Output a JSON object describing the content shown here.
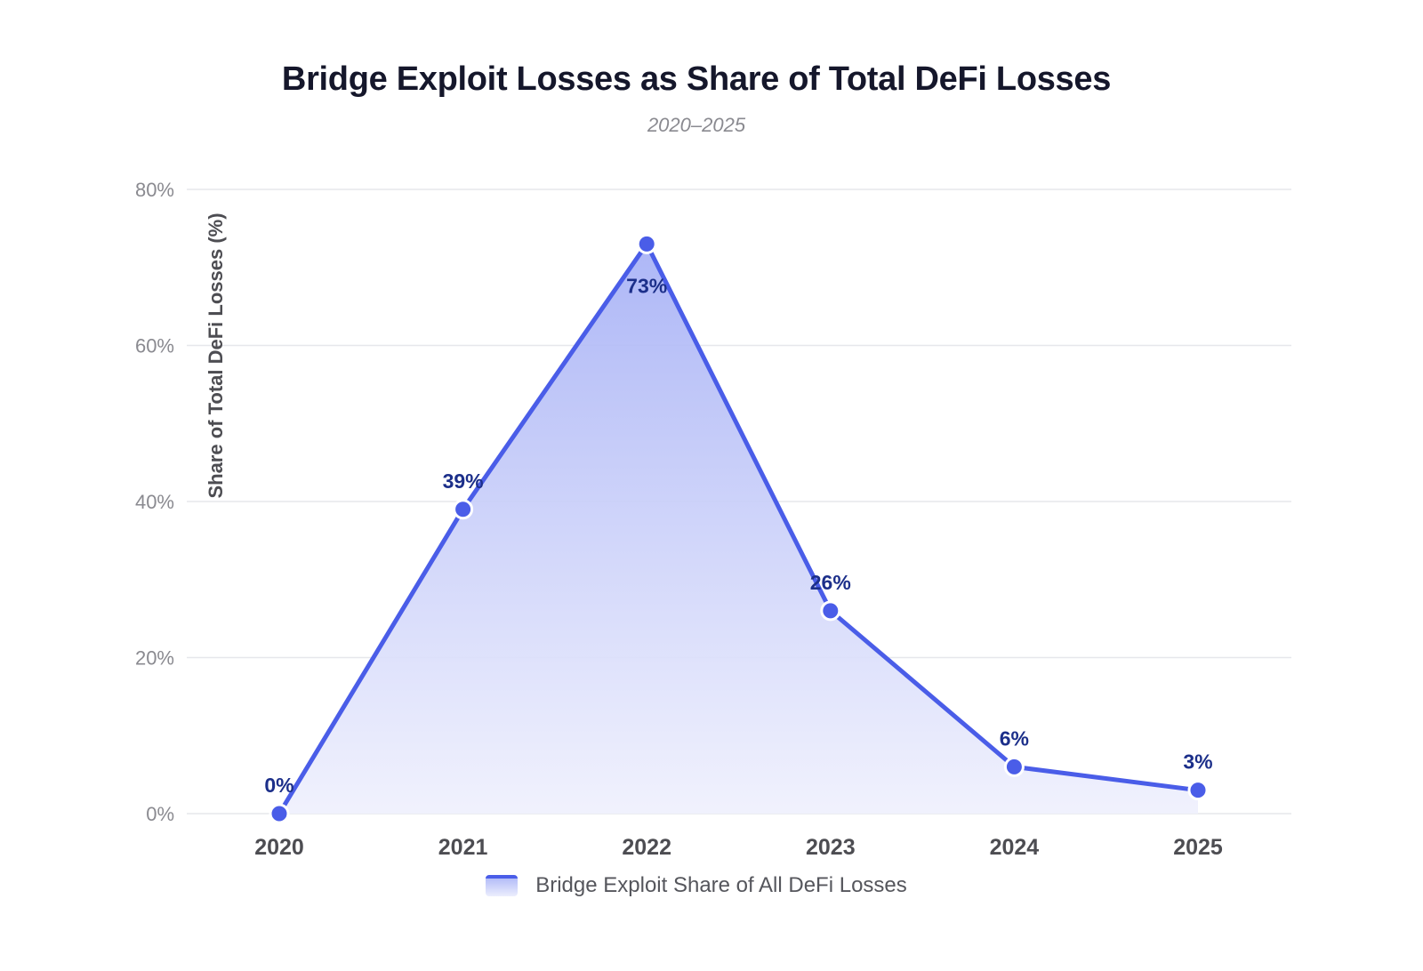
{
  "title": "Bridge Exploit Losses as Share of Total DeFi Losses",
  "subtitle": "2020–2025",
  "colors": {
    "line": "#4a5de8",
    "point": "#4a5de8",
    "label": "#1c2f8a",
    "grid": "#e6e7ec",
    "tick": "#8a8a90",
    "xtick": "#4d4d52"
  },
  "chart_data": {
    "type": "area",
    "title": "Bridge Exploit Losses as Share of Total DeFi Losses",
    "subtitle": "2020–2025",
    "ylabel": "Share of Total DeFi Losses (%)",
    "xlabel": "",
    "categories": [
      "2020",
      "2021",
      "2022",
      "2023",
      "2024",
      "2025"
    ],
    "series": [
      {
        "name": "Bridge Exploit Share of All DeFi Losses",
        "values": [
          0,
          39,
          73,
          26,
          6,
          3
        ],
        "labels": [
          "0%",
          "39%",
          "73%",
          "26%",
          "6%",
          "3%"
        ]
      }
    ],
    "ylim": [
      0,
      80
    ],
    "yticks": [
      0,
      20,
      40,
      60,
      80
    ],
    "ytick_labels": [
      "0%",
      "20%",
      "40%",
      "60%",
      "80%"
    ],
    "grid": true,
    "legend_position": "bottom"
  }
}
